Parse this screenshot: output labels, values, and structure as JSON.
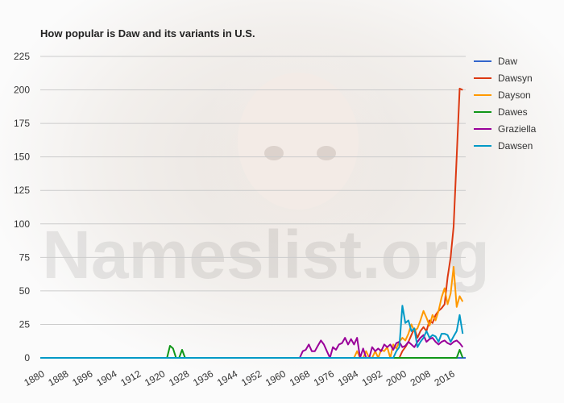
{
  "title": "How popular is Daw and its variants in U.S.",
  "watermark": "Nameslist.org",
  "colors": {
    "Daw": "#3366cc",
    "Dawsyn": "#dc3912",
    "Dayson": "#ff9900",
    "Dawes": "#109618",
    "Graziella": "#990099",
    "Dawsen": "#0099c6"
  },
  "chart_data": {
    "type": "line",
    "title": "How popular is Daw and its variants in U.S.",
    "xlabel": "",
    "ylabel": "",
    "xlim": [
      1880,
      2021
    ],
    "ylim": [
      0,
      225
    ],
    "y_ticks": [
      "0",
      "25",
      "50",
      "75",
      "100",
      "125",
      "150",
      "175",
      "200",
      "225"
    ],
    "x_ticks": [
      "1880",
      "1888",
      "1896",
      "1904",
      "1912",
      "1920",
      "1928",
      "1936",
      "1944",
      "1952",
      "1960",
      "1968",
      "1976",
      "1984",
      "1992",
      "2000",
      "2008",
      "2016"
    ],
    "grid": true,
    "legend_position": "right",
    "series": [
      {
        "name": "Daw",
        "color": "#3366cc",
        "points": [
          [
            1880,
            0
          ],
          [
            2021,
            0
          ]
        ]
      },
      {
        "name": "Dawsyn",
        "color": "#dc3912",
        "points": [
          [
            1880,
            0
          ],
          [
            1999,
            0
          ],
          [
            2000,
            5
          ],
          [
            2001,
            8
          ],
          [
            2002,
            12
          ],
          [
            2003,
            17
          ],
          [
            2004,
            22
          ],
          [
            2005,
            15
          ],
          [
            2006,
            20
          ],
          [
            2007,
            23
          ],
          [
            2008,
            20
          ],
          [
            2009,
            28
          ],
          [
            2010,
            26
          ],
          [
            2011,
            32
          ],
          [
            2012,
            35
          ],
          [
            2013,
            37
          ],
          [
            2014,
            40
          ],
          [
            2015,
            60
          ],
          [
            2016,
            75
          ],
          [
            2017,
            98
          ],
          [
            2018,
            150
          ],
          [
            2019,
            201
          ],
          [
            2020,
            200
          ]
        ]
      },
      {
        "name": "Dayson",
        "color": "#ff9900",
        "points": [
          [
            1880,
            0
          ],
          [
            1984,
            0
          ],
          [
            1985,
            5
          ],
          [
            1986,
            0
          ],
          [
            1987,
            0
          ],
          [
            1988,
            5
          ],
          [
            1989,
            0
          ],
          [
            1990,
            0
          ],
          [
            1991,
            5
          ],
          [
            1992,
            0
          ],
          [
            1993,
            6
          ],
          [
            1994,
            5
          ],
          [
            1995,
            8
          ],
          [
            1996,
            0
          ],
          [
            1997,
            10
          ],
          [
            1998,
            7
          ],
          [
            1999,
            12
          ],
          [
            2000,
            15
          ],
          [
            2001,
            13
          ],
          [
            2002,
            18
          ],
          [
            2003,
            25
          ],
          [
            2004,
            20
          ],
          [
            2005,
            22
          ],
          [
            2006,
            28
          ],
          [
            2007,
            35
          ],
          [
            2008,
            30
          ],
          [
            2009,
            24
          ],
          [
            2010,
            32
          ],
          [
            2011,
            28
          ],
          [
            2012,
            35
          ],
          [
            2013,
            45
          ],
          [
            2014,
            52
          ],
          [
            2015,
            40
          ],
          [
            2016,
            48
          ],
          [
            2017,
            68
          ],
          [
            2018,
            38
          ],
          [
            2019,
            46
          ],
          [
            2020,
            42
          ]
        ]
      },
      {
        "name": "Dawes",
        "color": "#109618",
        "points": [
          [
            1880,
            0
          ],
          [
            1922,
            0
          ],
          [
            1923,
            9
          ],
          [
            1924,
            7
          ],
          [
            1925,
            0
          ],
          [
            1926,
            0
          ],
          [
            1927,
            6
          ],
          [
            1928,
            0
          ],
          [
            2017,
            0
          ],
          [
            2018,
            0
          ],
          [
            2019,
            6
          ],
          [
            2020,
            0
          ]
        ]
      },
      {
        "name": "Graziella",
        "color": "#990099",
        "points": [
          [
            1880,
            0
          ],
          [
            1966,
            0
          ],
          [
            1967,
            5
          ],
          [
            1968,
            6
          ],
          [
            1969,
            10
          ],
          [
            1970,
            5
          ],
          [
            1971,
            5
          ],
          [
            1972,
            9
          ],
          [
            1973,
            13
          ],
          [
            1974,
            10
          ],
          [
            1975,
            5
          ],
          [
            1976,
            0
          ],
          [
            1977,
            8
          ],
          [
            1978,
            6
          ],
          [
            1979,
            10
          ],
          [
            1980,
            11
          ],
          [
            1981,
            15
          ],
          [
            1982,
            10
          ],
          [
            1983,
            14
          ],
          [
            1984,
            10
          ],
          [
            1985,
            15
          ],
          [
            1986,
            0
          ],
          [
            1987,
            7
          ],
          [
            1988,
            0
          ],
          [
            1989,
            0
          ],
          [
            1990,
            8
          ],
          [
            1991,
            5
          ],
          [
            1992,
            7
          ],
          [
            1993,
            5
          ],
          [
            1994,
            10
          ],
          [
            1995,
            8
          ],
          [
            1996,
            10
          ],
          [
            1997,
            6
          ],
          [
            1998,
            11
          ],
          [
            1999,
            12
          ],
          [
            2000,
            8
          ],
          [
            2001,
            9
          ],
          [
            2002,
            12
          ],
          [
            2003,
            10
          ],
          [
            2004,
            8
          ],
          [
            2005,
            12
          ],
          [
            2006,
            15
          ],
          [
            2007,
            17
          ],
          [
            2008,
            12
          ],
          [
            2009,
            14
          ],
          [
            2010,
            15
          ],
          [
            2011,
            12
          ],
          [
            2012,
            10
          ],
          [
            2013,
            12
          ],
          [
            2014,
            13
          ],
          [
            2015,
            11
          ],
          [
            2016,
            10
          ],
          [
            2017,
            12
          ],
          [
            2018,
            13
          ],
          [
            2019,
            11
          ],
          [
            2020,
            8
          ]
        ]
      },
      {
        "name": "Dawsen",
        "color": "#0099c6",
        "points": [
          [
            1880,
            0
          ],
          [
            1997,
            0
          ],
          [
            1998,
            5
          ],
          [
            1999,
            8
          ],
          [
            2000,
            39
          ],
          [
            2001,
            26
          ],
          [
            2002,
            28
          ],
          [
            2003,
            20
          ],
          [
            2004,
            22
          ],
          [
            2005,
            8
          ],
          [
            2006,
            12
          ],
          [
            2007,
            15
          ],
          [
            2008,
            20
          ],
          [
            2009,
            15
          ],
          [
            2010,
            17
          ],
          [
            2011,
            16
          ],
          [
            2012,
            12
          ],
          [
            2013,
            18
          ],
          [
            2014,
            18
          ],
          [
            2015,
            17
          ],
          [
            2016,
            12
          ],
          [
            2017,
            16
          ],
          [
            2018,
            20
          ],
          [
            2019,
            32
          ],
          [
            2020,
            18
          ]
        ]
      }
    ]
  }
}
